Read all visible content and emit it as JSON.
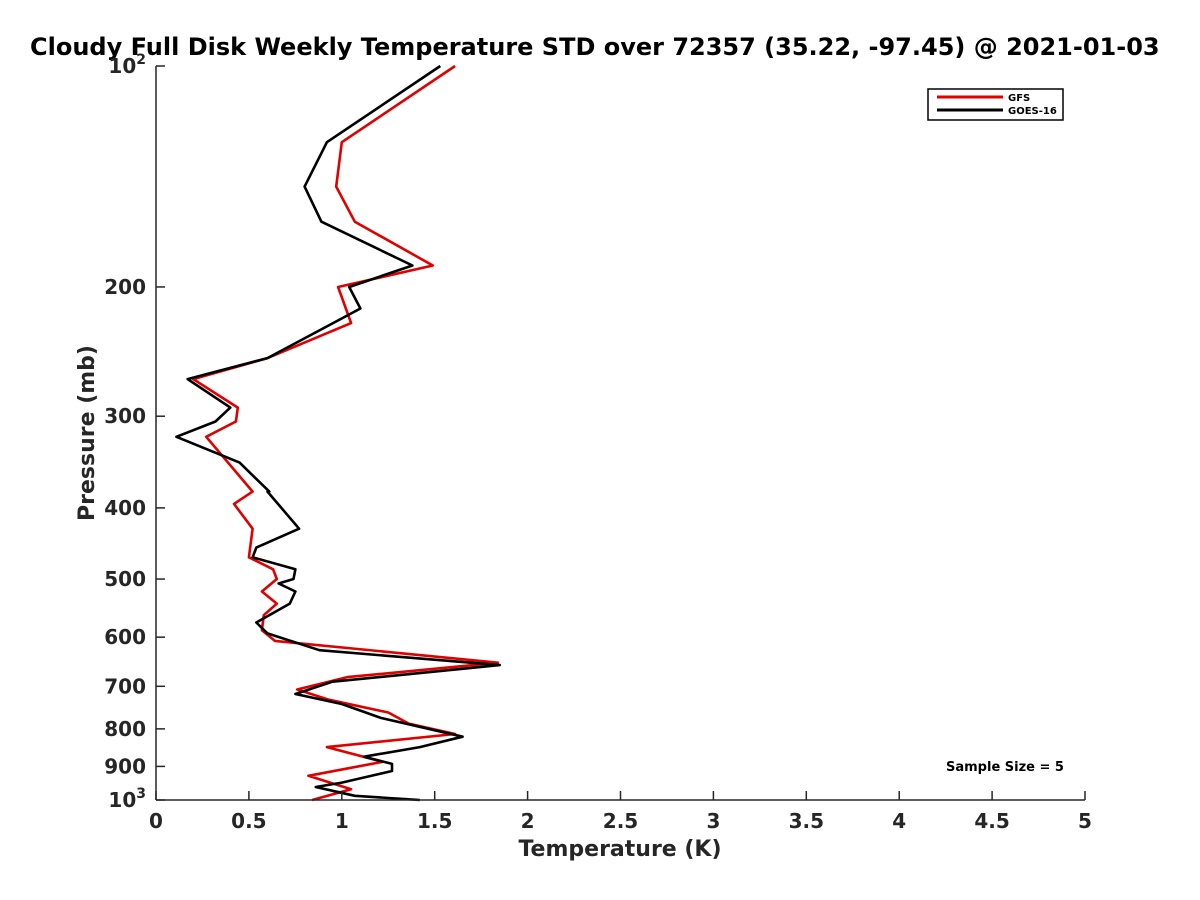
{
  "chart_data": {
    "type": "line",
    "title": "Cloudy Full Disk Weekly Temperature STD over 72357 (35.22, -97.45) @ 2021-01-03",
    "xlabel": "Temperature (K)",
    "ylabel": "Pressure (mb)",
    "xlim": [
      0,
      5
    ],
    "ylim": [
      1000,
      100
    ],
    "yscale": "log",
    "y_reversed": true,
    "x_ticks": [
      "0",
      "0.5",
      "1",
      "1.5",
      "2",
      "2.5",
      "3",
      "3.5",
      "4",
      "4.5",
      "5"
    ],
    "x_tick_values": [
      0,
      0.5,
      1,
      1.5,
      2,
      2.5,
      3,
      3.5,
      4,
      4.5,
      5
    ],
    "y_ticks": [
      {
        "value": 100,
        "base": "10",
        "exp": "2"
      },
      {
        "value": 200,
        "label": "200"
      },
      {
        "value": 300,
        "label": "300"
      },
      {
        "value": 400,
        "label": "400"
      },
      {
        "value": 500,
        "label": "500"
      },
      {
        "value": 600,
        "label": "600"
      },
      {
        "value": 700,
        "label": "700"
      },
      {
        "value": 800,
        "label": "800"
      },
      {
        "value": 900,
        "label": "900"
      },
      {
        "value": 1000,
        "base": "10",
        "exp": "3"
      }
    ],
    "grid": false,
    "legend_position": "top-right",
    "annotation": "Sample Size = 5",
    "series": [
      {
        "name": "GFS",
        "color": "#e00000",
        "x": [
          1.61,
          1.0,
          0.97,
          1.07,
          1.49,
          0.98,
          1.05,
          0.6,
          0.2,
          0.44,
          0.43,
          0.27,
          0.52,
          0.42,
          0.52,
          0.5,
          0.63,
          0.65,
          0.57,
          0.65,
          0.58,
          0.57,
          0.64,
          1.84,
          1.03,
          0.76,
          0.93,
          1.25,
          1.36,
          1.61,
          0.92,
          1.22,
          0.82,
          1.05,
          0.84
        ],
        "y": [
          100,
          127,
          146,
          163,
          187,
          200,
          224,
          250,
          267,
          292,
          305,
          320,
          380,
          395,
          427,
          467,
          485,
          500,
          520,
          540,
          560,
          587,
          607,
          650,
          680,
          707,
          730,
          760,
          787,
          813,
          847,
          887,
          927,
          967,
          1000
        ]
      },
      {
        "name": "GOES-16",
        "color": "#000000",
        "x": [
          1.53,
          0.92,
          0.8,
          0.89,
          1.38,
          1.04,
          1.1,
          0.6,
          0.17,
          0.4,
          0.32,
          0.11,
          0.45,
          0.61,
          0.6,
          0.77,
          0.54,
          0.52,
          0.75,
          0.74,
          0.66,
          0.75,
          0.72,
          0.54,
          0.6,
          0.88,
          1.85,
          0.95,
          0.75,
          1.0,
          1.21,
          1.65,
          1.42,
          1.12,
          1.27,
          1.27,
          1.0,
          0.86,
          1.07,
          1.42
        ],
        "y": [
          100,
          127,
          146,
          163,
          187,
          200,
          214,
          250,
          267,
          292,
          305,
          320,
          347,
          380,
          380,
          427,
          453,
          467,
          485,
          500,
          507,
          520,
          540,
          573,
          593,
          625,
          655,
          690,
          717,
          740,
          773,
          820,
          847,
          873,
          893,
          913,
          947,
          960,
          987,
          1000
        ]
      }
    ]
  }
}
